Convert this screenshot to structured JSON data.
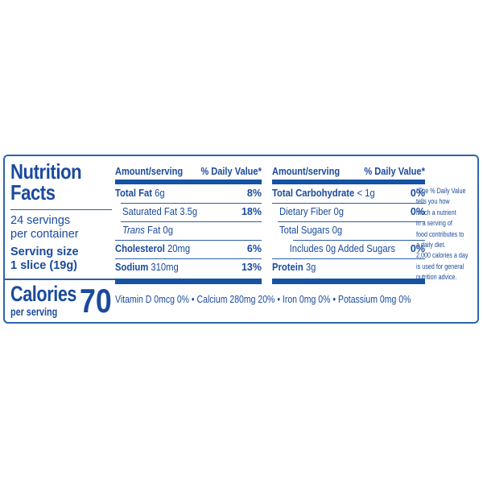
{
  "colors": {
    "text_blue": "#1a4a9c",
    "bar_blue": "#1553a4",
    "border_blue": "#2e64ab"
  },
  "panel": {
    "title_line1": "Nutrition",
    "title_line2": "Facts",
    "servings_count": "24 servings",
    "servings_sub": "per container",
    "serving_size_label": "Serving size",
    "serving_size_value": "1 slice (19g)",
    "calories_label": "Calories",
    "calories_sub": "per serving",
    "calories_value": "70"
  },
  "table_headers": {
    "amount": "Amount/serving",
    "daily_value": "% Daily Value*"
  },
  "fat_column": {
    "total_fat": {
      "name": "Total Fat ",
      "amount": "6g",
      "dv": "8%"
    },
    "saturated_fat": {
      "name": "Saturated Fat 3.5g",
      "dv": "18%"
    },
    "trans_fat": {
      "name_italic": "Trans",
      "name_rest": " Fat 0g"
    },
    "cholesterol": {
      "name": "Cholesterol ",
      "amount": "20mg",
      "dv": "6%"
    },
    "sodium": {
      "name": "Sodium ",
      "amount": "310mg",
      "dv": "13%"
    }
  },
  "carb_column": {
    "total_carbohydrate": {
      "name": "Total Carbohydrate ",
      "amount": "< 1g",
      "dv": "0%"
    },
    "dietary_fiber": {
      "name": "Dietary Fiber 0g",
      "dv": "0%"
    },
    "total_sugars": {
      "name": "Total Sugars 0g"
    },
    "added_sugars": {
      "name": "Includes 0g Added Sugars",
      "dv": "0%"
    },
    "protein": {
      "name": "Protein ",
      "amount": "3g"
    }
  },
  "micronutrients_line": "Vitamin D 0mcg 0% • Calcium 280mg 20% • Iron 0mg 0% • Potassium 0mg 0%",
  "footnote_lines": [
    "*The % Daily Value",
    "tells you how",
    "much a nutrient",
    "in a serving of",
    "food contributes to",
    "a daily diet.",
    "2,000 calories a day",
    "is used for general",
    "nutrition advice."
  ]
}
